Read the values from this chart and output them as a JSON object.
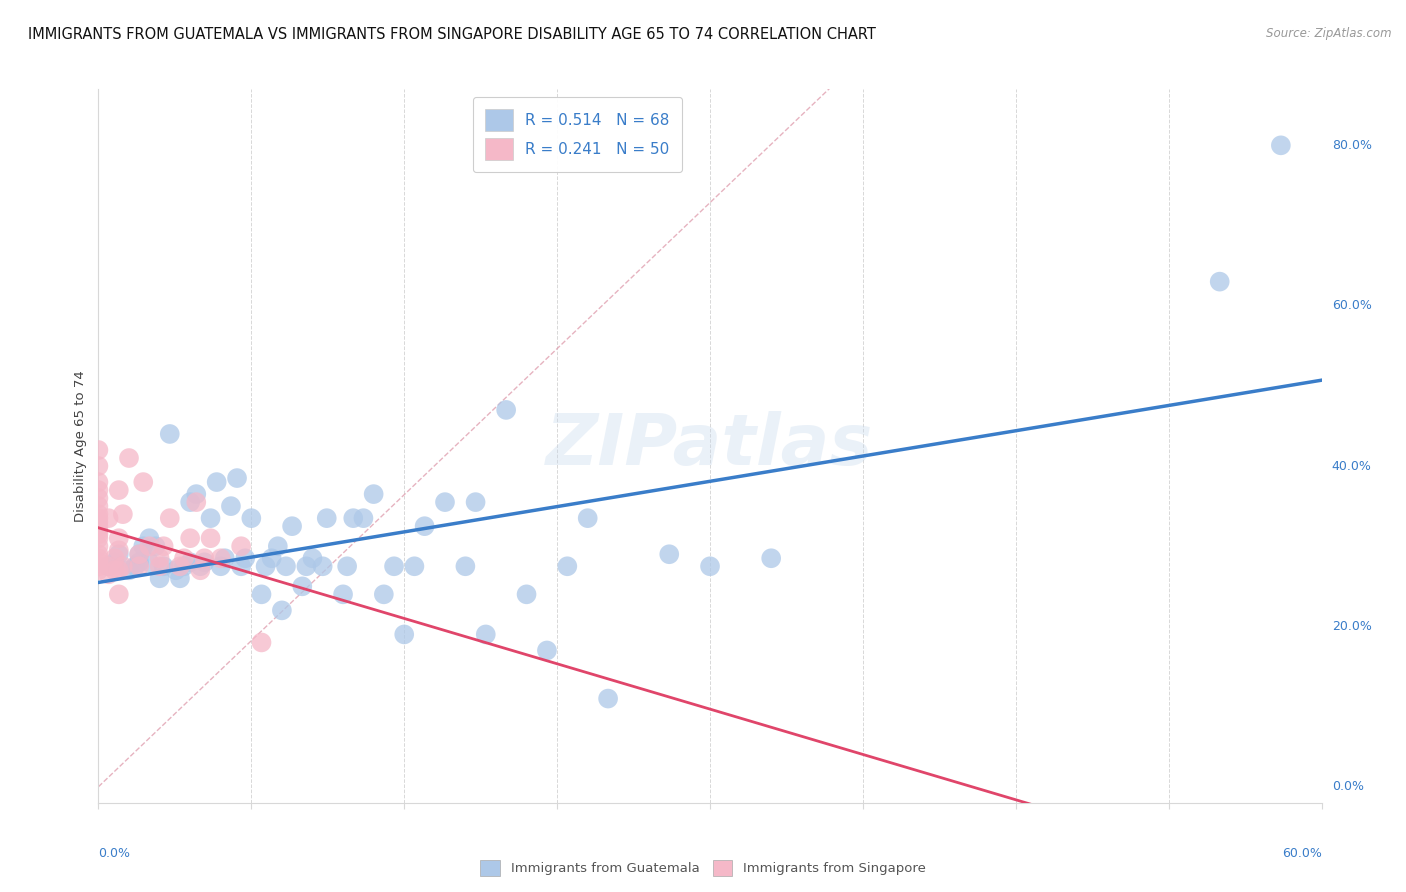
{
  "title": "IMMIGRANTS FROM GUATEMALA VS IMMIGRANTS FROM SINGAPORE DISABILITY AGE 65 TO 74 CORRELATION CHART",
  "source": "Source: ZipAtlas.com",
  "ylabel": "Disability Age 65 to 74",
  "ylabel_right_ticks": [
    "0.0%",
    "20.0%",
    "40.0%",
    "60.0%",
    "80.0%"
  ],
  "ylabel_right_vals": [
    0.0,
    0.2,
    0.4,
    0.6,
    0.8
  ],
  "xlim": [
    0.0,
    0.6
  ],
  "ylim": [
    -0.02,
    0.87
  ],
  "legend1_label": "R = 0.514   N = 68",
  "legend2_label": "R = 0.241   N = 50",
  "color_guatemala": "#adc8e8",
  "color_singapore": "#f5b8c8",
  "trendline_guatemala": "#3a7dc9",
  "trendline_singapore": "#e0456a",
  "trendline_diagonal_color": "#e0a0b0",
  "background_color": "#ffffff",
  "grid_color": "#d8d8d8",
  "title_fontsize": 10.5,
  "axis_label_fontsize": 9.5,
  "tick_fontsize": 9,
  "legend_fontsize": 11,
  "watermark": "ZIPatlas",
  "guatemala_x": [
    0.005,
    0.008,
    0.01,
    0.015,
    0.018,
    0.02,
    0.02,
    0.022,
    0.025,
    0.025,
    0.028,
    0.03,
    0.032,
    0.035,
    0.038,
    0.04,
    0.042,
    0.045,
    0.045,
    0.048,
    0.05,
    0.052,
    0.055,
    0.058,
    0.06,
    0.062,
    0.065,
    0.068,
    0.07,
    0.072,
    0.075,
    0.08,
    0.082,
    0.085,
    0.088,
    0.09,
    0.092,
    0.095,
    0.1,
    0.102,
    0.105,
    0.11,
    0.112,
    0.12,
    0.122,
    0.125,
    0.13,
    0.135,
    0.14,
    0.145,
    0.15,
    0.155,
    0.16,
    0.17,
    0.18,
    0.185,
    0.19,
    0.2,
    0.21,
    0.22,
    0.23,
    0.24,
    0.25,
    0.28,
    0.3,
    0.33,
    0.55,
    0.58
  ],
  "guatemala_y": [
    0.275,
    0.28,
    0.29,
    0.27,
    0.275,
    0.28,
    0.29,
    0.3,
    0.31,
    0.28,
    0.3,
    0.26,
    0.275,
    0.44,
    0.27,
    0.26,
    0.275,
    0.28,
    0.355,
    0.365,
    0.275,
    0.28,
    0.335,
    0.38,
    0.275,
    0.285,
    0.35,
    0.385,
    0.275,
    0.285,
    0.335,
    0.24,
    0.275,
    0.285,
    0.3,
    0.22,
    0.275,
    0.325,
    0.25,
    0.275,
    0.285,
    0.275,
    0.335,
    0.24,
    0.275,
    0.335,
    0.335,
    0.365,
    0.24,
    0.275,
    0.19,
    0.275,
    0.325,
    0.355,
    0.275,
    0.355,
    0.19,
    0.47,
    0.24,
    0.17,
    0.275,
    0.335,
    0.11,
    0.29,
    0.275,
    0.285,
    0.63,
    0.8
  ],
  "singapore_x": [
    0.0,
    0.0,
    0.0,
    0.0,
    0.0,
    0.0,
    0.0,
    0.0,
    0.0,
    0.0,
    0.0,
    0.0,
    0.0,
    0.0,
    0.0,
    0.0,
    0.0,
    0.0,
    0.0,
    0.005,
    0.005,
    0.005,
    0.008,
    0.008,
    0.01,
    0.01,
    0.01,
    0.01,
    0.01,
    0.012,
    0.012,
    0.015,
    0.02,
    0.02,
    0.022,
    0.025,
    0.03,
    0.03,
    0.032,
    0.035,
    0.04,
    0.042,
    0.045,
    0.048,
    0.05,
    0.052,
    0.055,
    0.06,
    0.07,
    0.08
  ],
  "singapore_y": [
    0.27,
    0.275,
    0.28,
    0.285,
    0.29,
    0.3,
    0.31,
    0.315,
    0.32,
    0.325,
    0.33,
    0.335,
    0.34,
    0.35,
    0.36,
    0.37,
    0.38,
    0.4,
    0.42,
    0.265,
    0.275,
    0.335,
    0.27,
    0.285,
    0.24,
    0.27,
    0.295,
    0.31,
    0.37,
    0.275,
    0.34,
    0.41,
    0.275,
    0.29,
    0.38,
    0.3,
    0.275,
    0.285,
    0.3,
    0.335,
    0.275,
    0.285,
    0.31,
    0.355,
    0.27,
    0.285,
    0.31,
    0.285,
    0.3,
    0.18
  ]
}
